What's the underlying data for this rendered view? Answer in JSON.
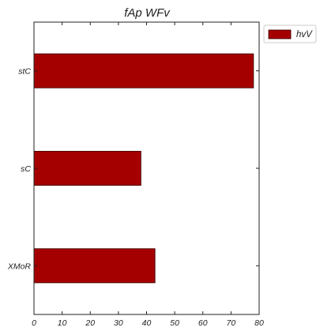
{
  "chart_data": {
    "type": "bar",
    "orientation": "horizontal",
    "title": "fAp  WFv",
    "categories": [
      "stC",
      "sC",
      "XMoR"
    ],
    "series": [
      {
        "name": "hvV",
        "values": [
          78,
          38,
          43
        ],
        "color": "#a50000"
      }
    ],
    "xlim": [
      0,
      80
    ],
    "xticks": [
      0,
      10,
      20,
      30,
      40,
      50,
      60,
      70,
      80
    ],
    "xlabel": "",
    "ylabel": "",
    "grid": false,
    "legend": "top-right-outside"
  }
}
